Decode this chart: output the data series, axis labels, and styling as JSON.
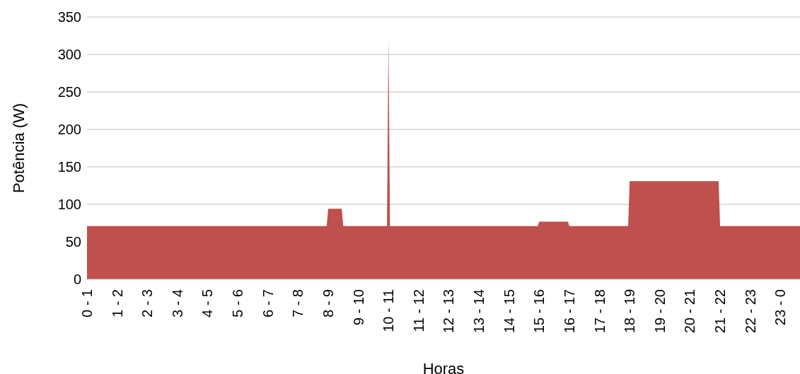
{
  "chart_data": {
    "type": "area",
    "xlabel": "Horas",
    "ylabel": "Potência (W)",
    "categories": [
      "0 - 1",
      null,
      null,
      null,
      null,
      null,
      null,
      null,
      null,
      null,
      null,
      null,
      null,
      null,
      null,
      null,
      null,
      null,
      null,
      null,
      "1 - 2",
      null,
      null,
      null,
      null,
      null,
      null,
      null,
      null,
      null,
      null,
      null,
      null,
      null,
      null,
      null,
      null,
      null,
      null,
      null,
      "2 - 3",
      null,
      null,
      null,
      null,
      null,
      null,
      null,
      null,
      null,
      null,
      null,
      null,
      null,
      null,
      null,
      null,
      null,
      null,
      null,
      "3 - 4",
      null,
      null,
      null,
      null,
      null,
      null,
      null,
      null,
      null,
      null,
      null,
      null,
      null,
      null,
      null,
      null,
      null,
      null,
      null,
      "4 - 5",
      null,
      null,
      null,
      null,
      null,
      null,
      null,
      null,
      null,
      null,
      null,
      null,
      null,
      null,
      null,
      null,
      null,
      null,
      null,
      "5 - 6",
      null,
      null,
      null,
      null,
      null,
      null,
      null,
      null,
      null,
      null,
      null,
      null,
      null,
      null,
      null,
      null,
      null,
      null,
      null,
      "6 - 7",
      null,
      null,
      null,
      null,
      null,
      null,
      null,
      null,
      null,
      null,
      null,
      null,
      null,
      null,
      null,
      null,
      null,
      null,
      null,
      "7 - 8",
      null,
      null,
      null,
      null,
      null,
      null,
      null,
      null,
      null,
      null,
      null,
      null,
      null,
      null,
      null,
      null,
      null,
      null,
      null,
      "8 - 9",
      null,
      null,
      null,
      null,
      null,
      null,
      null,
      null,
      null,
      null,
      null,
      null,
      null,
      null,
      null,
      null,
      null,
      null,
      null,
      "9 - 10",
      null,
      null,
      null,
      null,
      null,
      null,
      null,
      null,
      null,
      null,
      null,
      null,
      null,
      null,
      null,
      null,
      null,
      null,
      null,
      "10 - 11",
      null,
      null,
      null,
      null,
      null,
      null,
      null,
      null,
      null,
      null,
      null,
      null,
      null,
      null,
      null,
      null,
      null,
      null,
      null,
      "11 - 12",
      null,
      null,
      null,
      null,
      null,
      null,
      null,
      null,
      null,
      null,
      null,
      null,
      null,
      null,
      null,
      null,
      null,
      null,
      null,
      "12 - 13",
      null,
      null,
      null,
      null,
      null,
      null,
      null,
      null,
      null,
      null,
      null,
      null,
      null,
      null,
      null,
      null,
      null,
      null,
      null,
      "13 - 14",
      null,
      null,
      null,
      null,
      null,
      null,
      null,
      null,
      null,
      null,
      null,
      null,
      null,
      null,
      null,
      null,
      null,
      null,
      null,
      "14 - 15",
      null,
      null,
      null,
      null,
      null,
      null,
      null,
      null,
      null,
      null,
      null,
      null,
      null,
      null,
      null,
      null,
      null,
      null,
      null,
      "15 - 16",
      null,
      null,
      null,
      null,
      null,
      null,
      null,
      null,
      null,
      null,
      null,
      null,
      null,
      null,
      null,
      null,
      null,
      null,
      null,
      "16 - 17",
      null,
      null,
      null,
      null,
      null,
      null,
      null,
      null,
      null,
      null,
      null,
      null,
      null,
      null,
      null,
      null,
      null,
      null,
      null,
      "17 - 18",
      null,
      null,
      null,
      null,
      null,
      null,
      null,
      null,
      null,
      null,
      null,
      null,
      null,
      null,
      null,
      null,
      null,
      null,
      null,
      "18 - 19",
      null,
      null,
      null,
      null,
      null,
      null,
      null,
      null,
      null,
      null,
      null,
      null,
      null,
      null,
      null,
      null,
      null,
      null,
      null,
      "19 - 20",
      null,
      null,
      null,
      null,
      null,
      null,
      null,
      null,
      null,
      null,
      null,
      null,
      null,
      null,
      null,
      null,
      null,
      null,
      null,
      "20 - 21",
      null,
      null,
      null,
      null,
      null,
      null,
      null,
      null,
      null,
      null,
      null,
      null,
      null,
      null,
      null,
      null,
      null,
      null,
      null,
      "21 - 22",
      null,
      null,
      null,
      null,
      null,
      null,
      null,
      null,
      null,
      null,
      null,
      null,
      null,
      null,
      null,
      null,
      null,
      null,
      null,
      "22 - 23",
      null,
      null,
      null,
      null,
      null,
      null,
      null,
      null,
      null,
      null,
      null,
      null,
      null,
      null,
      null,
      null,
      null,
      null,
      null,
      "23 - 0",
      null,
      null,
      null,
      null,
      null,
      null,
      null,
      null,
      null,
      null,
      null,
      null,
      null
    ],
    "series": [
      {
        "color": "#c0504d",
        "values": [
          71,
          71,
          71,
          71,
          71,
          71,
          71,
          71,
          71,
          71,
          71,
          71,
          71,
          71,
          71,
          71,
          71,
          71,
          71,
          71,
          71,
          71,
          71,
          71,
          71,
          71,
          71,
          71,
          71,
          71,
          71,
          71,
          71,
          71,
          71,
          71,
          71,
          71,
          71,
          71,
          71,
          71,
          71,
          71,
          71,
          71,
          71,
          71,
          71,
          71,
          71,
          71,
          71,
          71,
          71,
          71,
          71,
          71,
          71,
          71,
          71,
          71,
          71,
          71,
          71,
          71,
          71,
          71,
          71,
          71,
          71,
          71,
          71,
          71,
          71,
          71,
          71,
          71,
          71,
          71,
          71,
          71,
          71,
          71,
          71,
          71,
          71,
          71,
          71,
          71,
          71,
          71,
          71,
          71,
          71,
          71,
          71,
          71,
          71,
          71,
          71,
          71,
          71,
          71,
          71,
          71,
          71,
          71,
          71,
          71,
          71,
          71,
          71,
          71,
          71,
          71,
          71,
          71,
          71,
          71,
          71,
          71,
          71,
          71,
          71,
          71,
          71,
          71,
          71,
          71,
          71,
          71,
          71,
          71,
          71,
          71,
          71,
          71,
          71,
          71,
          71,
          71,
          71,
          71,
          71,
          71,
          71,
          71,
          71,
          71,
          71,
          71,
          71,
          71,
          71,
          71,
          71,
          71,
          71,
          71,
          94,
          94,
          94,
          94,
          94,
          94,
          94,
          94,
          94,
          94,
          71,
          71,
          71,
          71,
          71,
          71,
          71,
          71,
          71,
          71,
          71,
          71,
          71,
          71,
          71,
          71,
          71,
          71,
          71,
          71,
          71,
          71,
          71,
          71,
          71,
          71,
          71,
          71,
          71,
          71,
          322,
          71,
          71,
          71,
          71,
          71,
          71,
          71,
          71,
          71,
          71,
          71,
          71,
          71,
          71,
          71,
          71,
          71,
          71,
          71,
          71,
          71,
          71,
          71,
          71,
          71,
          71,
          71,
          71,
          71,
          71,
          71,
          71,
          71,
          71,
          71,
          71,
          71,
          71,
          71,
          71,
          71,
          71,
          71,
          71,
          71,
          71,
          71,
          71,
          71,
          71,
          71,
          71,
          71,
          71,
          71,
          71,
          71,
          71,
          71,
          71,
          71,
          71,
          71,
          71,
          71,
          71,
          71,
          71,
          71,
          71,
          71,
          71,
          71,
          71,
          71,
          71,
          71,
          71,
          71,
          71,
          71,
          71,
          71,
          71,
          71,
          71,
          71,
          71,
          71,
          71,
          71,
          71,
          71,
          71,
          71,
          71,
          71,
          71,
          71,
          77,
          77,
          77,
          77,
          77,
          77,
          77,
          77,
          77,
          77,
          77,
          77,
          77,
          77,
          77,
          77,
          77,
          77,
          77,
          77,
          71,
          71,
          71,
          71,
          71,
          71,
          71,
          71,
          71,
          71,
          71,
          71,
          71,
          71,
          71,
          71,
          71,
          71,
          71,
          71,
          71,
          71,
          71,
          71,
          71,
          71,
          71,
          71,
          71,
          71,
          71,
          71,
          71,
          71,
          71,
          71,
          71,
          71,
          71,
          71,
          131,
          131,
          131,
          131,
          131,
          131,
          131,
          131,
          131,
          131,
          131,
          131,
          131,
          131,
          131,
          131,
          131,
          131,
          131,
          131,
          131,
          131,
          131,
          131,
          131,
          131,
          131,
          131,
          131,
          131,
          131,
          131,
          131,
          131,
          131,
          131,
          131,
          131,
          131,
          131,
          131,
          131,
          131,
          131,
          131,
          131,
          131,
          131,
          131,
          131,
          131,
          131,
          131,
          131,
          131,
          131,
          131,
          131,
          131,
          131,
          71,
          71,
          71,
          71,
          71,
          71,
          71,
          71,
          71,
          71,
          71,
          71,
          71,
          71,
          71,
          71,
          71,
          71,
          71,
          71,
          71,
          71,
          71,
          71,
          71,
          71,
          71,
          71,
          71,
          71,
          71,
          71,
          71,
          71,
          71,
          71,
          71,
          71,
          71,
          71,
          71,
          71,
          71,
          71,
          71,
          71,
          71,
          71,
          71,
          71,
          71,
          71,
          71,
          71
        ]
      }
    ],
    "ylim": [
      0,
      350
    ],
    "yticks": [
      0,
      50,
      100,
      150,
      200,
      250,
      300,
      350
    ],
    "grid": "y",
    "legend": false
  }
}
